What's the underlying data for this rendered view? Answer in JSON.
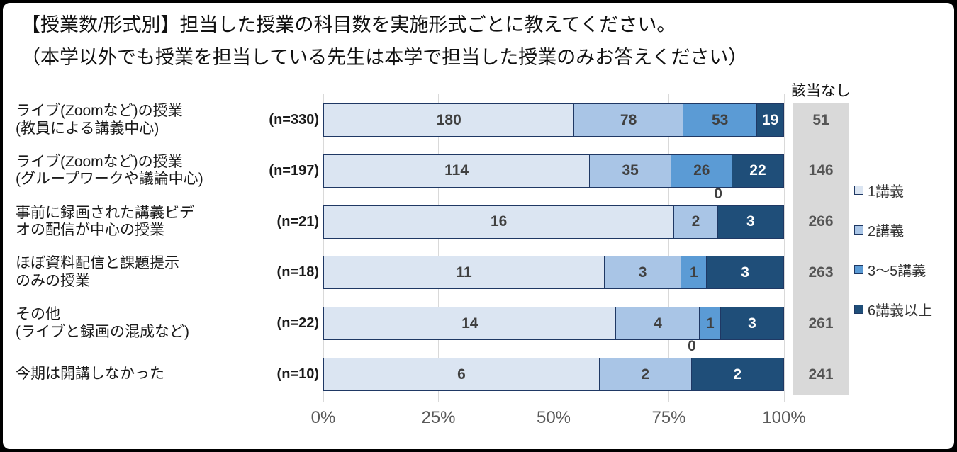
{
  "title": {
    "line1": "【授業数/形式別】担当した授業の科目数を実施形式ごとに教えてください。",
    "line2": "（本学以外でも授業を担当している先生は本学で担当した授業のみお答えください）"
  },
  "na_column": {
    "header": "該当なし",
    "values": [
      51,
      146,
      266,
      263,
      261,
      241
    ]
  },
  "chart_data": {
    "type": "bar",
    "orientation": "horizontal",
    "stacked": true,
    "normalized": "percent_of_n",
    "categories": [
      {
        "lines": [
          "ライブ(Zoomなど)の授業",
          "(教員による講義中心)"
        ],
        "n": 330,
        "n_label": "(n=330)"
      },
      {
        "lines": [
          "ライブ(Zoomなど)の授業",
          "(グループワークや議論中心)"
        ],
        "n": 197,
        "n_label": "(n=197)"
      },
      {
        "lines": [
          "事前に録画された講義ビデ",
          "オの配信が中心の授業"
        ],
        "n": 21,
        "n_label": "(n=21)"
      },
      {
        "lines": [
          "ほぼ資料配信と課題提示",
          "のみの授業"
        ],
        "n": 18,
        "n_label": "(n=18)"
      },
      {
        "lines": [
          "その他",
          "(ライブと録画の混成など)"
        ],
        "n": 22,
        "n_label": "(n=22)"
      },
      {
        "lines": [
          "今期は開講しなかった"
        ],
        "n": 10,
        "n_label": "(n=10)"
      }
    ],
    "series": [
      {
        "name": "1講義",
        "color": "#dbe5f2",
        "value_text_color": "#404040",
        "values": [
          180,
          114,
          16,
          11,
          14,
          6
        ]
      },
      {
        "name": "2講義",
        "color": "#a9c5e6",
        "value_text_color": "#404040",
        "values": [
          78,
          35,
          2,
          3,
          4,
          2
        ]
      },
      {
        "name": "3〜5講義",
        "color": "#5b9bd5",
        "value_text_color": "#404040",
        "values": [
          53,
          26,
          0,
          1,
          1,
          0
        ]
      },
      {
        "name": "6講義以上",
        "color": "#1f4e79",
        "value_text_color": "#ffffff",
        "values": [
          19,
          22,
          3,
          3,
          3,
          2
        ]
      }
    ],
    "na_values": [
      51,
      146,
      266,
      263,
      261,
      241
    ],
    "x_ticks": [
      "0%",
      "25%",
      "50%",
      "75%",
      "100%"
    ],
    "xlim": [
      0,
      100
    ],
    "grid": true,
    "legend_position": "right"
  },
  "colors": {
    "segment_border": "#1f3864",
    "gridline": "#d9d9d9",
    "axis_line": "#d9d9d9",
    "na_bg": "#d9d9d9",
    "na_text": "#555555",
    "axis_text": "#595959",
    "zero_label_text": "#404040",
    "frame_border": "#000000",
    "panel_bg": "#ffffff"
  }
}
